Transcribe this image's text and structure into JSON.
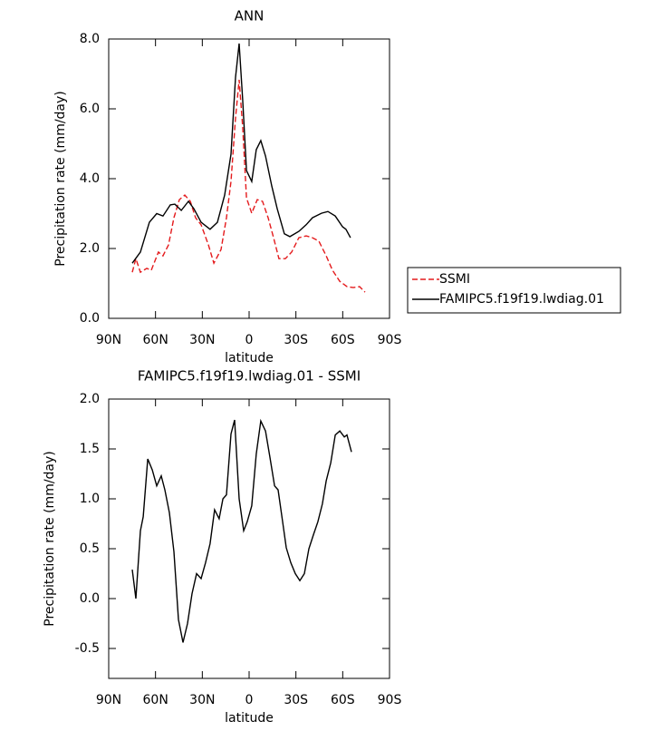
{
  "chart_data": [
    {
      "type": "line",
      "title": "ANN",
      "xlabel": "latitude",
      "ylabel": "Precipitation rate (mm/day)",
      "xlim": [
        90,
        -90
      ],
      "xticks": [
        {
          "value": 90,
          "label": "90N"
        },
        {
          "value": 60,
          "label": "60N"
        },
        {
          "value": 30,
          "label": "30N"
        },
        0,
        {
          "value": -30,
          "label": "30S"
        },
        {
          "value": -60,
          "label": "60S"
        },
        {
          "value": -90,
          "label": "90S"
        }
      ],
      "ylim": [
        0,
        8
      ],
      "yticks": [
        {
          "value": 0,
          "label": "0.0"
        },
        {
          "value": 2,
          "label": "2.0"
        },
        {
          "value": 4,
          "label": "4.0"
        },
        {
          "value": 6,
          "label": "6.0"
        },
        {
          "value": 8,
          "label": "8.0"
        }
      ],
      "legend": "right",
      "series": [
        {
          "name": "SSMI",
          "color": "#e41a1c",
          "dash": true,
          "x": [
            74.9,
            72.6,
            69.7,
            65.6,
            62.7,
            58.1,
            55.2,
            51.7,
            48.2,
            44.7,
            41.2,
            37.7,
            34.3,
            30.8,
            26.1,
            22.6,
            18.0,
            14.5,
            11.6,
            8.7,
            6.4,
            4.1,
            1.7,
            -1.7,
            -5.2,
            -8.6,
            -12.2,
            -15.7,
            -19.1,
            -23.2,
            -27.3,
            -31.9,
            -36.6,
            -40.6,
            -44.7,
            -49.4,
            -53.4,
            -58.1,
            -62.7,
            -66.8,
            -70.8,
            -74.3
          ],
          "values": [
            1.32,
            1.71,
            1.32,
            1.43,
            1.38,
            1.9,
            1.79,
            2.1,
            2.88,
            3.4,
            3.53,
            3.35,
            2.88,
            2.68,
            2.1,
            1.58,
            1.97,
            2.88,
            3.92,
            5.74,
            6.83,
            5.48,
            3.45,
            3.01,
            3.4,
            3.35,
            2.88,
            2.31,
            1.71,
            1.71,
            1.9,
            2.31,
            2.36,
            2.31,
            2.21,
            1.79,
            1.38,
            1.06,
            0.91,
            0.88,
            0.91,
            0.75
          ]
        },
        {
          "name": "FAMIPC5.f19f19.lwdiag.01",
          "color": "#000000",
          "dash": false,
          "x": [
            74.9,
            69.7,
            63.9,
            59.2,
            55.2,
            50.5,
            47.6,
            43.5,
            38.9,
            35.4,
            30.8,
            25.0,
            20.3,
            15.7,
            11.6,
            8.7,
            6.4,
            4.1,
            1.7,
            -1.7,
            -4.6,
            -7.5,
            -10.5,
            -14.5,
            -18.0,
            -22.6,
            -26.1,
            -31.9,
            -36.6,
            -40.6,
            -46.4,
            -50.5,
            -55.2,
            -59.9,
            -62.1,
            -65.0
          ],
          "values": [
            1.58,
            1.9,
            2.75,
            3.0,
            2.93,
            3.25,
            3.27,
            3.09,
            3.35,
            3.14,
            2.75,
            2.55,
            2.75,
            3.53,
            4.7,
            6.9,
            7.87,
            6.26,
            4.23,
            3.92,
            4.83,
            5.09,
            4.65,
            3.79,
            3.14,
            2.42,
            2.34,
            2.49,
            2.68,
            2.88,
            3.01,
            3.06,
            2.93,
            2.62,
            2.55,
            2.31
          ]
        }
      ]
    },
    {
      "type": "line",
      "title": "FAMIPC5.f19f19.lwdiag.01 - SSMI",
      "xlabel": "latitude",
      "ylabel": "Precipitation rate (mm/day)",
      "xlim": [
        90,
        -90
      ],
      "xticks": [
        {
          "value": 90,
          "label": "90N"
        },
        {
          "value": 60,
          "label": "60N"
        },
        {
          "value": 30,
          "label": "30N"
        },
        0,
        {
          "value": -30,
          "label": "30S"
        },
        {
          "value": -60,
          "label": "60S"
        },
        {
          "value": -90,
          "label": "90S"
        }
      ],
      "ylim": [
        -0.8,
        2.0
      ],
      "yticks": [
        -0.5,
        {
          "value": 0,
          "label": "0.0"
        },
        0.5,
        {
          "value": 1,
          "label": "1.0"
        },
        1.5,
        {
          "value": 2,
          "label": "2.0"
        }
      ],
      "series": [
        {
          "color": "#000000",
          "dash": false,
          "x": [
            74.9,
            72.6,
            69.7,
            67.9,
            65.0,
            62.1,
            59.2,
            56.3,
            54.0,
            51.1,
            48.2,
            45.3,
            42.4,
            39.5,
            36.6,
            33.7,
            30.8,
            27.9,
            25.0,
            22.1,
            19.2,
            16.8,
            14.5,
            11.6,
            9.3,
            6.4,
            3.5,
            1.2,
            -1.7,
            -4.6,
            -7.5,
            -10.5,
            -13.4,
            -16.3,
            -18.6,
            -21.5,
            -23.8,
            -26.7,
            -29.6,
            -32.5,
            -35.4,
            -38.3,
            -41.2,
            -44.1,
            -47.0,
            -49.4,
            -52.3,
            -55.2,
            -58.1,
            -61.0,
            -62.7,
            -65.6
          ],
          "values": [
            0.29,
            0.0,
            0.68,
            0.82,
            1.4,
            1.29,
            1.13,
            1.23,
            1.09,
            0.86,
            0.47,
            -0.21,
            -0.44,
            -0.25,
            0.05,
            0.25,
            0.2,
            0.36,
            0.55,
            0.89,
            0.8,
            1.0,
            1.04,
            1.65,
            1.79,
            1.0,
            0.68,
            0.77,
            0.93,
            1.45,
            1.78,
            1.68,
            1.41,
            1.13,
            1.09,
            0.77,
            0.51,
            0.36,
            0.25,
            0.18,
            0.25,
            0.5,
            0.64,
            0.77,
            0.95,
            1.18,
            1.36,
            1.64,
            1.68,
            1.62,
            1.64,
            1.47
          ]
        }
      ]
    }
  ]
}
